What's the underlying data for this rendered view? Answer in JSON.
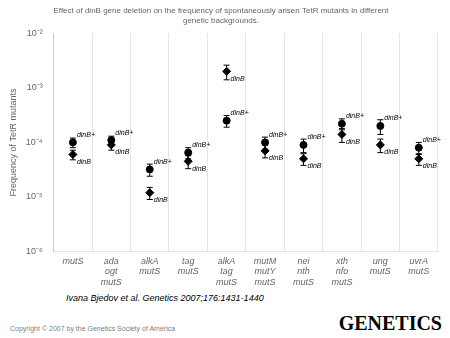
{
  "chart_data": {
    "type": "scatter",
    "title": "Effect of dinB gene deletion on the frequency of spontaneously arisen TetR mutants in different\ngenetic backgrounds.",
    "ylabel": "Frequency of TetR mutants",
    "categories": [
      "mutS",
      "ada\nogt\nmutS",
      "alkA\nmutS",
      "tag\nmutS",
      "alkA\ntag\nmutS",
      "mutM\nmutY\nmutS",
      "nei\nnth\nmutS",
      "xth\nnfo\nmutS",
      "ung\nmutS",
      "uvrA\nmutS"
    ],
    "series": [
      {
        "name": "dinB+",
        "color": "#000000",
        "marker": "circle",
        "values": [
          0.0001,
          0.00011,
          3.2e-05,
          6.5e-05,
          0.00025,
          0.0001,
          9e-05,
          0.00022,
          0.0002,
          8e-05
        ],
        "error_minus": [
          2e-05,
          2e-05,
          8e-06,
          1.5e-05,
          6e-05,
          2.5e-05,
          2.5e-05,
          5e-05,
          6e-05,
          2e-05
        ],
        "error_plus": [
          2e-05,
          2e-05,
          8e-06,
          1.5e-05,
          6e-05,
          2.5e-05,
          2.5e-05,
          5e-05,
          6e-05,
          2e-05
        ]
      },
      {
        "name": "dinB",
        "color": "#000000",
        "marker": "diamond",
        "values": [
          6e-05,
          9e-05,
          1.2e-05,
          4.5e-05,
          0.002,
          7e-05,
          5e-05,
          0.00014,
          9e-05,
          5e-05
        ],
        "error_minus": [
          1.2e-05,
          1.8e-05,
          3e-06,
          1.2e-05,
          0.0006,
          1.8e-05,
          1.2e-05,
          4e-05,
          2.5e-05,
          1.2e-05
        ],
        "error_plus": [
          1.2e-05,
          1.8e-05,
          3e-06,
          1.2e-05,
          0.0006,
          1.8e-05,
          1.2e-05,
          4e-05,
          2.5e-05,
          1.2e-05
        ]
      }
    ],
    "log": "y",
    "ylim": [
      1e-06,
      0.01
    ],
    "yticks": [
      {
        "value": 1e-06,
        "label": "10⁻⁶"
      },
      {
        "value": 1e-05,
        "label": "10⁻⁵"
      },
      {
        "value": 0.0001,
        "label": "10⁻⁴"
      },
      {
        "value": 0.001,
        "label": "10⁻³"
      },
      {
        "value": 0.01,
        "label": "10⁻²"
      }
    ],
    "grid": false,
    "annotations": [
      "Ivana Bjedov et al. Genetics 2007;176:1431-1440",
      "Copyright © 2007 by the Genetics Society of America",
      "GENETICS"
    ]
  }
}
